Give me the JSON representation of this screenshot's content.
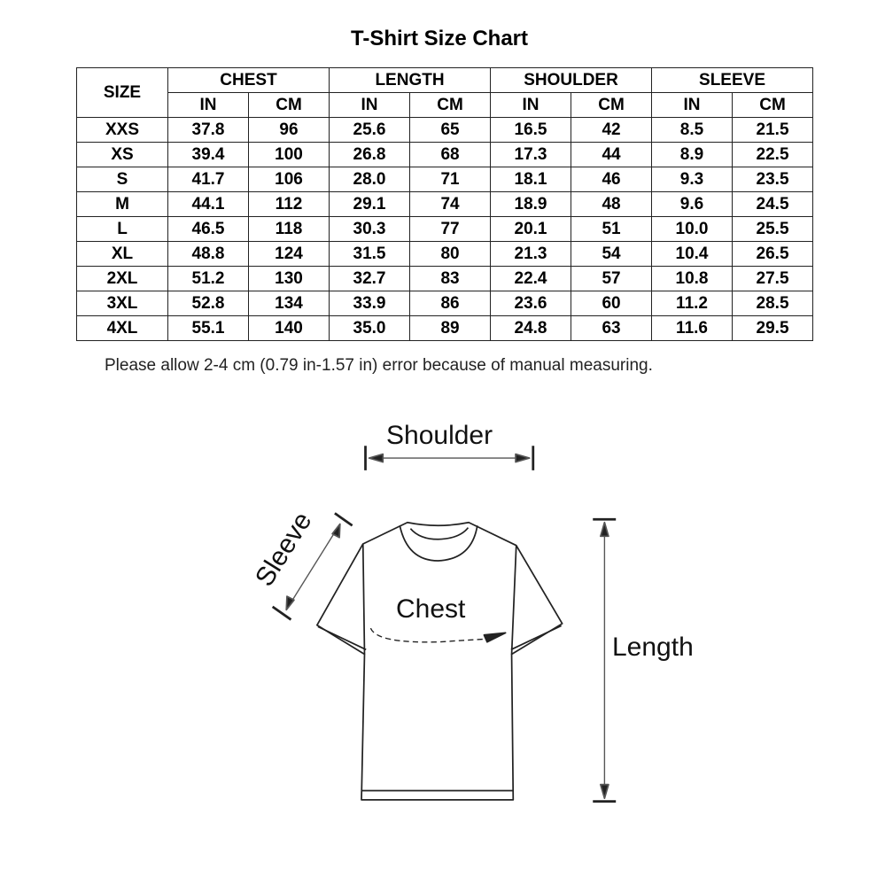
{
  "title": "T-Shirt Size Chart",
  "table": {
    "size_header": "SIZE",
    "groups": [
      "CHEST",
      "LENGTH",
      "SHOULDER",
      "SLEEVE"
    ],
    "units": [
      "IN",
      "CM"
    ],
    "rows": [
      [
        "XXS",
        "37.8",
        "96",
        "25.6",
        "65",
        "16.5",
        "42",
        "8.5",
        "21.5"
      ],
      [
        "XS",
        "39.4",
        "100",
        "26.8",
        "68",
        "17.3",
        "44",
        "8.9",
        "22.5"
      ],
      [
        "S",
        "41.7",
        "106",
        "28.0",
        "71",
        "18.1",
        "46",
        "9.3",
        "23.5"
      ],
      [
        "M",
        "44.1",
        "112",
        "29.1",
        "74",
        "18.9",
        "48",
        "9.6",
        "24.5"
      ],
      [
        "L",
        "46.5",
        "118",
        "30.3",
        "77",
        "20.1",
        "51",
        "10.0",
        "25.5"
      ],
      [
        "XL",
        "48.8",
        "124",
        "31.5",
        "80",
        "21.3",
        "54",
        "10.4",
        "26.5"
      ],
      [
        "2XL",
        "51.2",
        "130",
        "32.7",
        "83",
        "22.4",
        "57",
        "10.8",
        "27.5"
      ],
      [
        "3XL",
        "52.8",
        "134",
        "33.9",
        "86",
        "23.6",
        "60",
        "11.2",
        "28.5"
      ],
      [
        "4XL",
        "55.1",
        "140",
        "35.0",
        "89",
        "24.8",
        "63",
        "11.6",
        "29.5"
      ]
    ]
  },
  "note": "Please allow 2-4 cm (0.79 in-1.57 in) error because of manual measuring.",
  "diagram": {
    "shoulder_label": "Shoulder",
    "sleeve_label": "Sleeve",
    "chest_label": "Chest",
    "length_label": "Length"
  }
}
